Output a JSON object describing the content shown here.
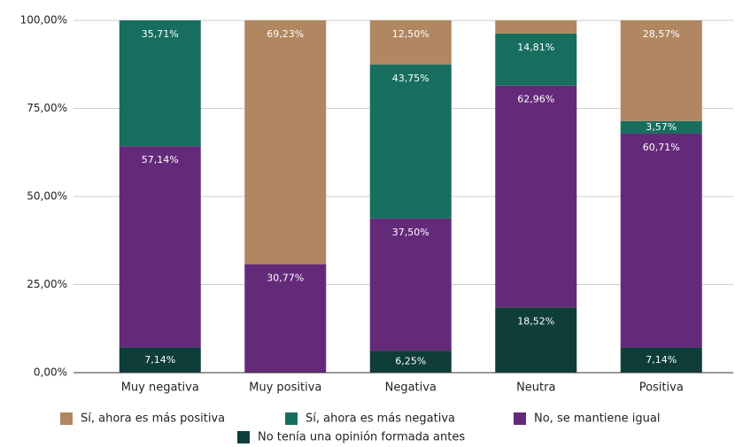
{
  "chart_data": {
    "type": "stacked_bar",
    "categories": [
      "Muy negativa",
      "Muy positiva",
      "Negativa",
      "Neutra",
      "Positiva"
    ],
    "series": [
      {
        "name": "No tenía una opinión formada antes",
        "color": "#0f3d3a",
        "values": [
          7.14,
          0,
          6.25,
          18.52,
          7.14
        ],
        "value_labels": [
          "7,14%",
          null,
          "6,25%",
          "18,52%",
          "7,14%"
        ]
      },
      {
        "name": "No, se mantiene igual",
        "color": "#642a7a",
        "values": [
          57.14,
          30.77,
          37.5,
          62.96,
          60.71
        ],
        "value_labels": [
          "57,14%",
          "30,77%",
          "37,50%",
          "62,96%",
          "60,71%"
        ]
      },
      {
        "name": "Sí, ahora es más negativa",
        "color": "#176e5f",
        "values": [
          35.71,
          0,
          43.75,
          14.81,
          3.57
        ],
        "value_labels": [
          "35,71%",
          null,
          "43,75%",
          "14,81%",
          "3,57%"
        ]
      },
      {
        "name": "Sí, ahora es más positiva",
        "color": "#b08760",
        "values": [
          0,
          69.23,
          12.5,
          3.7,
          28.57
        ],
        "value_labels": [
          null,
          "69,23%",
          "12,50%",
          null,
          "28,57%"
        ]
      }
    ],
    "ylim": [
      0,
      100
    ],
    "yticks": [
      {
        "value": 0,
        "label": "0,00%"
      },
      {
        "value": 25,
        "label": "25,00%"
      },
      {
        "value": 50,
        "label": "50,00%"
      },
      {
        "value": 75,
        "label": "75,00%"
      },
      {
        "value": 100,
        "label": "100,00%"
      }
    ],
    "grid": true
  }
}
